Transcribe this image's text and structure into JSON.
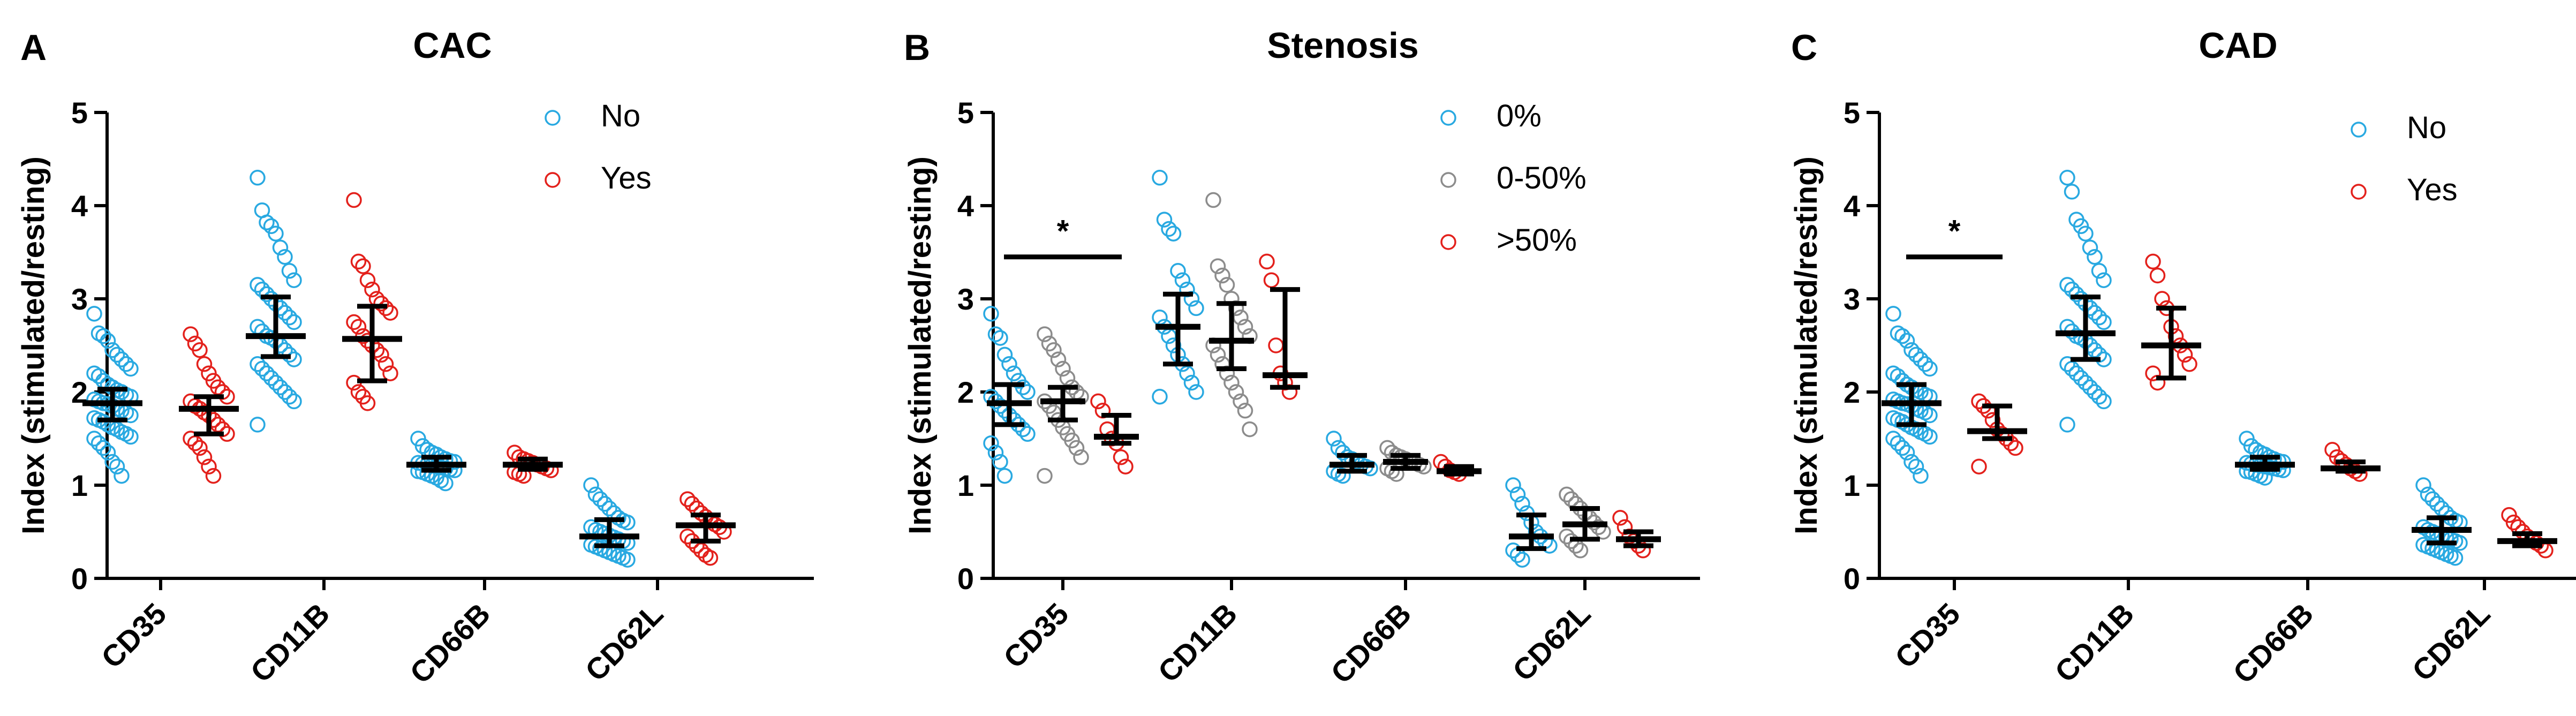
{
  "figure_name": "neutrophil-activation-index-figure",
  "chart_data": [
    {
      "type": "scatter",
      "panel_letter": "A",
      "title": "CAC",
      "xlabel": "",
      "ylabel": "Index (stimulated/resting)",
      "ylim": [
        0,
        5
      ],
      "yticks": [
        "0",
        "1",
        "2",
        "3",
        "4",
        "5"
      ],
      "categories": [
        "CD35",
        "CD11B",
        "CD66B",
        "CD62L"
      ],
      "legend_position": "top-right",
      "series": [
        {
          "name": "No",
          "color": "#29a9e1",
          "summary": [
            {
              "median": 1.88,
              "q1": 1.7,
              "q3": 2.03
            },
            {
              "median": 2.6,
              "q1": 2.38,
              "q3": 3.02
            },
            {
              "median": 1.22,
              "q1": 1.16,
              "q3": 1.3
            },
            {
              "median": 0.45,
              "q1": 0.35,
              "q3": 0.63
            }
          ],
          "points": [
            [
              2.84,
              2.63,
              2.6,
              2.55,
              2.45,
              2.4,
              2.35,
              2.3,
              2.25,
              2.2,
              2.17,
              2.12,
              2.08,
              2.05,
              2.02,
              2.0,
              1.97,
              1.95,
              1.92,
              1.9,
              1.88,
              1.87,
              1.85,
              1.82,
              1.8,
              1.78,
              1.75,
              1.72,
              1.7,
              1.68,
              1.65,
              1.62,
              1.6,
              1.57,
              1.55,
              1.52,
              1.5,
              1.45,
              1.4,
              1.35,
              1.25,
              1.2,
              1.1
            ],
            [
              4.3,
              3.95,
              3.82,
              3.78,
              3.7,
              3.55,
              3.45,
              3.3,
              3.2,
              3.15,
              3.1,
              3.05,
              3.0,
              2.95,
              2.9,
              2.85,
              2.8,
              2.75,
              2.7,
              2.65,
              2.6,
              2.58,
              2.55,
              2.5,
              2.45,
              2.4,
              2.35,
              2.3,
              2.25,
              2.2,
              2.15,
              2.1,
              2.05,
              2.0,
              1.95,
              1.9,
              1.65
            ],
            [
              1.5,
              1.42,
              1.38,
              1.35,
              1.33,
              1.3,
              1.28,
              1.26,
              1.25,
              1.24,
              1.23,
              1.22,
              1.21,
              1.2,
              1.19,
              1.18,
              1.17,
              1.16,
              1.15,
              1.14,
              1.12,
              1.1,
              1.08,
              1.05,
              1.02
            ],
            [
              1.0,
              0.9,
              0.85,
              0.8,
              0.75,
              0.7,
              0.65,
              0.62,
              0.6,
              0.55,
              0.52,
              0.5,
              0.48,
              0.46,
              0.44,
              0.42,
              0.4,
              0.38,
              0.36,
              0.34,
              0.32,
              0.3,
              0.28,
              0.26,
              0.24,
              0.22,
              0.2
            ]
          ]
        },
        {
          "name": "Yes",
          "color": "#e3211c",
          "summary": [
            {
              "median": 1.82,
              "q1": 1.55,
              "q3": 1.95
            },
            {
              "median": 2.57,
              "q1": 2.12,
              "q3": 2.92
            },
            {
              "median": 1.22,
              "q1": 1.17,
              "q3": 1.28
            },
            {
              "median": 0.57,
              "q1": 0.4,
              "q3": 0.68
            }
          ],
          "points": [
            [
              2.62,
              2.52,
              2.45,
              2.3,
              2.2,
              2.12,
              2.05,
              2.0,
              1.95,
              1.9,
              1.85,
              1.82,
              1.78,
              1.75,
              1.7,
              1.65,
              1.6,
              1.55,
              1.5,
              1.45,
              1.4,
              1.3,
              1.2,
              1.1
            ],
            [
              4.06,
              3.4,
              3.35,
              3.2,
              3.1,
              3.0,
              2.95,
              2.9,
              2.85,
              2.75,
              2.7,
              2.6,
              2.55,
              2.5,
              2.45,
              2.4,
              2.3,
              2.2,
              2.1,
              2.0,
              1.95,
              1.88
            ],
            [
              1.35,
              1.3,
              1.28,
              1.26,
              1.24,
              1.22,
              1.2,
              1.18,
              1.16,
              1.14,
              1.12,
              1.1
            ],
            [
              0.85,
              0.8,
              0.75,
              0.7,
              0.66,
              0.62,
              0.58,
              0.55,
              0.5,
              0.45,
              0.4,
              0.35,
              0.3,
              0.25,
              0.22
            ]
          ]
        }
      ],
      "significance": []
    },
    {
      "type": "scatter",
      "panel_letter": "B",
      "title": "Stenosis",
      "xlabel": "",
      "ylabel": "Index (stimulated/resting)",
      "ylim": [
        0,
        5
      ],
      "yticks": [
        "0",
        "1",
        "2",
        "3",
        "4",
        "5"
      ],
      "categories": [
        "CD35",
        "CD11B",
        "CD66B",
        "CD62L"
      ],
      "legend_position": "top-right",
      "series": [
        {
          "name": "0%",
          "color": "#29a9e1",
          "summary": [
            {
              "median": 1.88,
              "q1": 1.65,
              "q3": 2.08
            },
            {
              "median": 2.7,
              "q1": 2.3,
              "q3": 3.05
            },
            {
              "median": 1.22,
              "q1": 1.15,
              "q3": 1.32
            },
            {
              "median": 0.45,
              "q1": 0.32,
              "q3": 0.68
            }
          ],
          "points": [
            [
              2.84,
              2.62,
              2.58,
              2.4,
              2.3,
              2.2,
              2.12,
              2.05,
              2.0,
              1.95,
              1.9,
              1.85,
              1.8,
              1.75,
              1.7,
              1.65,
              1.6,
              1.55,
              1.45,
              1.35,
              1.25,
              1.1
            ],
            [
              4.3,
              3.85,
              3.75,
              3.7,
              3.3,
              3.2,
              3.1,
              3.0,
              2.9,
              2.8,
              2.7,
              2.6,
              2.5,
              2.4,
              2.3,
              2.2,
              2.1,
              2.0,
              1.95
            ],
            [
              1.5,
              1.4,
              1.35,
              1.3,
              1.28,
              1.25,
              1.22,
              1.2,
              1.18,
              1.15,
              1.12,
              1.1
            ],
            [
              1.0,
              0.9,
              0.8,
              0.7,
              0.6,
              0.5,
              0.45,
              0.4,
              0.35,
              0.3,
              0.25,
              0.2
            ]
          ]
        },
        {
          "name": "0-50%",
          "color": "#8c8c8c",
          "summary": [
            {
              "median": 1.9,
              "q1": 1.7,
              "q3": 2.05
            },
            {
              "median": 2.55,
              "q1": 2.25,
              "q3": 2.95
            },
            {
              "median": 1.25,
              "q1": 1.18,
              "q3": 1.32
            },
            {
              "median": 0.58,
              "q1": 0.42,
              "q3": 0.75
            }
          ],
          "points": [
            [
              2.62,
              2.52,
              2.45,
              2.35,
              2.25,
              2.15,
              2.05,
              2.0,
              1.95,
              1.9,
              1.85,
              1.78,
              1.7,
              1.62,
              1.55,
              1.48,
              1.4,
              1.3,
              1.1
            ],
            [
              4.06,
              3.35,
              3.25,
              3.15,
              3.0,
              2.9,
              2.8,
              2.7,
              2.6,
              2.5,
              2.4,
              2.3,
              2.2,
              2.1,
              2.0,
              1.9,
              1.8,
              1.6
            ],
            [
              1.4,
              1.35,
              1.32,
              1.3,
              1.28,
              1.26,
              1.24,
              1.22,
              1.2,
              1.18,
              1.15,
              1.12
            ],
            [
              0.9,
              0.85,
              0.8,
              0.75,
              0.7,
              0.65,
              0.6,
              0.55,
              0.5,
              0.45,
              0.4,
              0.35,
              0.3
            ]
          ]
        },
        {
          "name": ">50%",
          "color": "#e3211c",
          "summary": [
            {
              "median": 1.52,
              "q1": 1.45,
              "q3": 1.75
            },
            {
              "median": 2.18,
              "q1": 2.05,
              "q3": 3.1
            },
            {
              "median": 1.15,
              "q1": 1.12,
              "q3": 1.2
            },
            {
              "median": 0.42,
              "q1": 0.35,
              "q3": 0.5
            }
          ],
          "points": [
            [
              1.9,
              1.8,
              1.6,
              1.5,
              1.45,
              1.3,
              1.2
            ],
            [
              3.4,
              3.2,
              2.5,
              2.2,
              2.1,
              2.0
            ],
            [
              1.25,
              1.2,
              1.16,
              1.14,
              1.12
            ],
            [
              0.65,
              0.55,
              0.45,
              0.4,
              0.35,
              0.3
            ]
          ]
        }
      ],
      "significance": [
        {
          "category": "CD35",
          "label": "*",
          "y": 3.45
        }
      ]
    },
    {
      "type": "scatter",
      "panel_letter": "C",
      "title": "CAD",
      "xlabel": "",
      "ylabel": "Index (stimulated/resting)",
      "ylim": [
        0,
        5
      ],
      "yticks": [
        "0",
        "1",
        "2",
        "3",
        "4",
        "5"
      ],
      "categories": [
        "CD35",
        "CD11B",
        "CD66B",
        "CD62L"
      ],
      "legend_position": "top-right",
      "series": [
        {
          "name": "No",
          "color": "#29a9e1",
          "summary": [
            {
              "median": 1.88,
              "q1": 1.65,
              "q3": 2.08
            },
            {
              "median": 2.63,
              "q1": 2.35,
              "q3": 3.02
            },
            {
              "median": 1.22,
              "q1": 1.17,
              "q3": 1.3
            },
            {
              "median": 0.52,
              "q1": 0.38,
              "q3": 0.65
            }
          ],
          "points": [
            [
              2.84,
              2.63,
              2.6,
              2.55,
              2.45,
              2.4,
              2.35,
              2.3,
              2.25,
              2.2,
              2.17,
              2.12,
              2.08,
              2.05,
              2.02,
              2.0,
              1.97,
              1.95,
              1.92,
              1.9,
              1.88,
              1.87,
              1.85,
              1.82,
              1.8,
              1.78,
              1.75,
              1.72,
              1.7,
              1.68,
              1.65,
              1.62,
              1.6,
              1.57,
              1.55,
              1.52,
              1.5,
              1.45,
              1.4,
              1.35,
              1.25,
              1.2,
              1.1
            ],
            [
              4.3,
              4.15,
              3.85,
              3.78,
              3.7,
              3.55,
              3.45,
              3.3,
              3.2,
              3.15,
              3.1,
              3.05,
              3.0,
              2.95,
              2.9,
              2.85,
              2.8,
              2.75,
              2.7,
              2.65,
              2.6,
              2.58,
              2.55,
              2.5,
              2.45,
              2.4,
              2.35,
              2.3,
              2.25,
              2.2,
              2.15,
              2.1,
              2.05,
              2.0,
              1.95,
              1.9,
              1.65
            ],
            [
              1.5,
              1.42,
              1.38,
              1.35,
              1.33,
              1.3,
              1.28,
              1.26,
              1.25,
              1.24,
              1.23,
              1.22,
              1.21,
              1.2,
              1.19,
              1.18,
              1.17,
              1.16,
              1.15,
              1.14,
              1.12,
              1.1,
              1.08
            ],
            [
              1.0,
              0.9,
              0.85,
              0.8,
              0.75,
              0.7,
              0.65,
              0.62,
              0.6,
              0.55,
              0.52,
              0.5,
              0.48,
              0.46,
              0.44,
              0.42,
              0.4,
              0.38,
              0.36,
              0.34,
              0.32,
              0.3,
              0.28,
              0.26,
              0.24,
              0.22
            ]
          ]
        },
        {
          "name": "Yes",
          "color": "#e3211c",
          "summary": [
            {
              "median": 1.58,
              "q1": 1.5,
              "q3": 1.85
            },
            {
              "median": 2.5,
              "q1": 2.15,
              "q3": 2.9
            },
            {
              "median": 1.18,
              "q1": 1.15,
              "q3": 1.25
            },
            {
              "median": 0.4,
              "q1": 0.35,
              "q3": 0.48
            }
          ],
          "points": [
            [
              1.9,
              1.85,
              1.8,
              1.7,
              1.6,
              1.55,
              1.5,
              1.45,
              1.4,
              1.2
            ],
            [
              3.4,
              3.25,
              3.0,
              2.9,
              2.7,
              2.6,
              2.5,
              2.4,
              2.3,
              2.2,
              2.1
            ],
            [
              1.38,
              1.3,
              1.26,
              1.22,
              1.18,
              1.15,
              1.12
            ],
            [
              0.68,
              0.6,
              0.55,
              0.5,
              0.45,
              0.42,
              0.38,
              0.35,
              0.3
            ]
          ]
        }
      ],
      "significance": [
        {
          "category": "CD35",
          "label": "*",
          "y": 3.45
        }
      ]
    }
  ]
}
